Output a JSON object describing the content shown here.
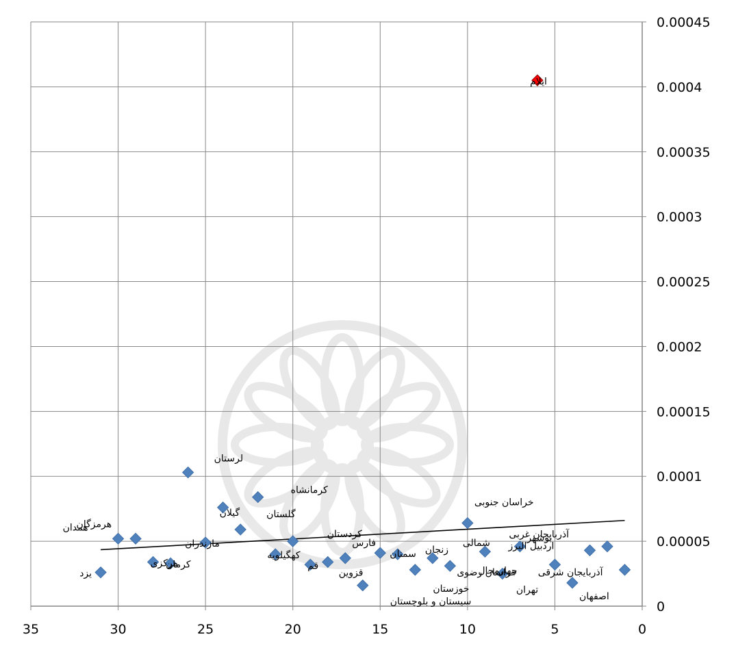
{
  "chart_data": {
    "type": "scatter",
    "title": "",
    "xlabel": "",
    "ylabel": "",
    "x_reversed": true,
    "xlim": [
      0,
      35
    ],
    "ylim": [
      0,
      0.00045
    ],
    "x_ticks": [
      {
        "value": 35,
        "label": "35"
      },
      {
        "value": 30,
        "label": "30"
      },
      {
        "value": 25,
        "label": "25"
      },
      {
        "value": 20,
        "label": "20"
      },
      {
        "value": 15,
        "label": "15"
      },
      {
        "value": 10,
        "label": "10"
      },
      {
        "value": 5,
        "label": "5"
      },
      {
        "value": 0,
        "label": "0"
      }
    ],
    "y_ticks": [
      {
        "value": 0,
        "label": "0"
      },
      {
        "value": 5e-05,
        "label": "0.00005"
      },
      {
        "value": 0.0001,
        "label": "0.0001"
      },
      {
        "value": 0.00015,
        "label": "0.00015"
      },
      {
        "value": 0.0002,
        "label": "0.0002"
      },
      {
        "value": 0.00025,
        "label": "0.00025"
      },
      {
        "value": 0.0003,
        "label": "0.0003"
      },
      {
        "value": 0.00035,
        "label": "0.00035"
      },
      {
        "value": 0.0004,
        "label": "0.0004"
      },
      {
        "value": 0.00045,
        "label": "0.00045"
      }
    ],
    "grid": true,
    "y_axis_side": "right",
    "marker": "diamond",
    "marker_color": "#4f81bd",
    "highlight_color": "#ff0000",
    "trendline": {
      "x": [
        31,
        1
      ],
      "y": [
        4.35e-05,
        6.6e-05
      ],
      "color": "#000000"
    },
    "points": [
      {
        "x": 1,
        "y": 2.8e-05,
        "label": "آذربایجان شرقی"
      },
      {
        "x": 2,
        "y": 4.6e-05,
        "label": "آذربایجان غربی"
      },
      {
        "x": 3,
        "y": 4.3e-05,
        "label": "اردبیل البرز"
      },
      {
        "x": 4,
        "y": 1.8e-05,
        "label": "اصفهان"
      },
      {
        "x": 5,
        "y": 3.2e-05,
        "label": ""
      },
      {
        "x": 6,
        "y": 0.000405,
        "label": "ایلام",
        "highlight": true
      },
      {
        "x": 7,
        "y": 4.6e-05,
        "label": "بوشهر"
      },
      {
        "x": 8,
        "y": 2.5e-05,
        "label": "تهران"
      },
      {
        "x": 9,
        "y": 4.2e-05,
        "label": "چهارمحال"
      },
      {
        "x": 10,
        "y": 6.4e-05,
        "label": "خراسان جنوبی"
      },
      {
        "x": 11,
        "y": 3.1e-05,
        "label": "خراسان رضوی"
      },
      {
        "x": 12,
        "y": 3.7e-05,
        "label": "شمالی"
      },
      {
        "x": 13,
        "y": 2.8e-05,
        "label": "خوزستان"
      },
      {
        "x": 14,
        "y": 4e-05,
        "label": "زنجان"
      },
      {
        "x": 15,
        "y": 4.1e-05,
        "label": "سمنان"
      },
      {
        "x": 16,
        "y": 1.6e-05,
        "label": "سیستان و بلوچستان"
      },
      {
        "x": 17,
        "y": 3.7e-05,
        "label": "فارس"
      },
      {
        "x": 18,
        "y": 3.4e-05,
        "label": "قزوین"
      },
      {
        "x": 19,
        "y": 3.2e-05,
        "label": "قم"
      },
      {
        "x": 20,
        "y": 5e-05,
        "label": "کردستان"
      },
      {
        "x": 21,
        "y": 4e-05,
        "label": "کهگیلویه"
      },
      {
        "x": 22,
        "y": 8.4e-05,
        "label": "کرمانشاه"
      },
      {
        "x": 23,
        "y": 5.9e-05,
        "label": "گلستان"
      },
      {
        "x": 24,
        "y": 7.6e-05,
        "label": "گیلان"
      },
      {
        "x": 25,
        "y": 4.9e-05,
        "label": "مازندران"
      },
      {
        "x": 26,
        "y": 0.000103,
        "label": "لرستان"
      },
      {
        "x": 27,
        "y": 3.3e-05,
        "label": "کرمان"
      },
      {
        "x": 28,
        "y": 3.4e-05,
        "label": "مرکزی"
      },
      {
        "x": 29,
        "y": 5.2e-05,
        "label": "هرمزگان"
      },
      {
        "x": 30,
        "y": 5.2e-05,
        "label": "همدان"
      },
      {
        "x": 31,
        "y": 2.6e-05,
        "label": "یزد"
      }
    ]
  }
}
